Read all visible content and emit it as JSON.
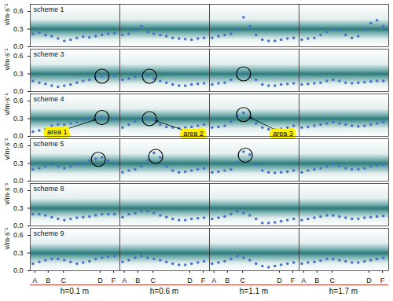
{
  "chart_data": {
    "type": "scatter",
    "y_label": "v/m·s⁻¹",
    "color": "#4a72c4",
    "marker": "circle",
    "x": [
      0.03,
      0.1,
      0.17,
      0.24,
      0.31,
      0.38,
      0.45,
      0.52,
      0.59,
      0.66,
      0.73,
      0.8,
      0.87,
      0.94
    ],
    "xlim": [
      0,
      1
    ],
    "xticks": [
      {
        "value": 0.05,
        "label": "A"
      },
      {
        "value": 0.2,
        "label": "B"
      },
      {
        "value": 0.37,
        "label": "C"
      },
      {
        "value": 0.78,
        "label": "D"
      },
      {
        "value": 0.93,
        "label": "F"
      }
    ],
    "ylim": [
      0,
      0.72
    ],
    "yticks": [
      {
        "value": 0,
        "label": "0.0"
      },
      {
        "value": 0.3,
        "label": "0.3"
      },
      {
        "value": 0.6,
        "label": "0.6"
      }
    ],
    "rows": [
      "scheme 1",
      "scheme 3",
      "scheme 4",
      "scheme 5",
      "scheme 8",
      "scheme 9"
    ],
    "columns": [
      "h=0.1 m",
      "h=0.6 m",
      "h=1.1 m",
      "h=1.7 m"
    ],
    "panels": [
      {
        "row": "scheme 1",
        "column": "h=0.1 m",
        "values": [
          0.22,
          0.24,
          0.2,
          0.18,
          0.14,
          0.1,
          0.12,
          0.15,
          0.17,
          0.16,
          0.18,
          0.2,
          0.22,
          0.23
        ]
      },
      {
        "row": "scheme 1",
        "column": "h=0.6 m",
        "values": [
          0.2,
          0.22,
          0.28,
          0.35,
          0.25,
          0.22,
          0.2,
          0.18,
          0.15,
          0.14,
          0.13,
          0.12,
          0.14,
          0.15
        ]
      },
      {
        "row": "scheme 1",
        "column": "h=1.1 m",
        "values": [
          0.15,
          0.18,
          0.2,
          0.22,
          0.3,
          0.5,
          0.35,
          0.2,
          0.12,
          0.1,
          0.1,
          0.12,
          0.14,
          0.15
        ]
      },
      {
        "row": "scheme 1",
        "column": "h=1.7 m",
        "values": [
          0.12,
          0.14,
          0.15,
          0.2,
          0.25,
          0.3,
          0.28,
          0.2,
          0.15,
          0.18,
          0.3,
          0.4,
          0.45,
          0.35
        ]
      },
      {
        "row": "scheme 3",
        "column": "h=0.1 m",
        "values": [
          0.18,
          0.15,
          0.13,
          0.1,
          0.08,
          0.1,
          0.12,
          0.15,
          0.18,
          0.2,
          0.25,
          0.26,
          0.27,
          0.26
        ]
      },
      {
        "row": "scheme 3",
        "column": "h=0.6 m",
        "values": [
          0.2,
          0.22,
          0.25,
          0.28,
          0.27,
          0.22,
          0.18,
          0.15,
          0.12,
          0.1,
          0.1,
          0.12,
          0.13,
          0.14
        ]
      },
      {
        "row": "scheme 3",
        "column": "h=1.1 m",
        "values": [
          0.12,
          0.14,
          0.15,
          0.2,
          0.3,
          0.32,
          0.28,
          0.2,
          0.12,
          0.1,
          0.1,
          0.12,
          0.13,
          0.14
        ]
      },
      {
        "row": "scheme 3",
        "column": "h=1.7 m",
        "values": [
          0.12,
          0.13,
          0.14,
          0.15,
          0.18,
          0.2,
          0.18,
          0.15,
          0.14,
          0.15,
          0.16,
          0.17,
          0.18,
          0.18
        ]
      },
      {
        "row": "scheme 4",
        "column": "h=0.1 m",
        "values": [
          0.08,
          0.1,
          0.12,
          0.18,
          0.2,
          0.2,
          0.22,
          0.24,
          0.28,
          0.3,
          0.32,
          0.33,
          0.32,
          0.3
        ]
      },
      {
        "row": "scheme 4",
        "column": "h=0.6 m",
        "values": [
          0.15,
          0.2,
          0.25,
          0.3,
          0.32,
          0.28,
          0.2,
          0.16,
          0.15,
          0.14,
          0.15,
          0.16,
          0.18,
          0.2
        ]
      },
      {
        "row": "scheme 4",
        "column": "h=1.1 m",
        "values": [
          0.15,
          0.16,
          0.18,
          0.25,
          0.35,
          0.4,
          0.32,
          0.22,
          0.15,
          0.12,
          0.12,
          0.13,
          0.15,
          0.18
        ]
      },
      {
        "row": "scheme 4",
        "column": "h=1.7 m",
        "values": [
          0.15,
          0.16,
          0.18,
          0.2,
          0.22,
          0.24,
          0.22,
          0.2,
          0.18,
          0.17,
          0.18,
          0.2,
          0.22,
          0.24
        ]
      },
      {
        "row": "scheme 5",
        "column": "h=0.1 m",
        "values": [
          0.2,
          0.22,
          0.25,
          0.28,
          0.25,
          0.22,
          0.25,
          0.28,
          0.3,
          0.35,
          0.38,
          0.4,
          0.35,
          0.3
        ]
      },
      {
        "row": "scheme 5",
        "column": "h=0.6 m",
        "values": [
          0.15,
          0.18,
          0.2,
          0.25,
          0.35,
          0.48,
          0.4,
          0.25,
          0.18,
          0.15,
          0.16,
          0.18,
          0.2,
          0.22
        ]
      },
      {
        "row": "scheme 5",
        "column": "h=1.1 m",
        "values": [
          0.15,
          0.16,
          0.18,
          0.2,
          0.32,
          0.5,
          0.45,
          0.28,
          0.18,
          0.15,
          0.14,
          0.15,
          0.16,
          0.18
        ]
      },
      {
        "row": "scheme 5",
        "column": "h=1.7 m",
        "values": [
          0.15,
          0.18,
          0.2,
          0.22,
          0.25,
          0.28,
          0.26,
          0.22,
          0.2,
          0.2,
          0.22,
          0.25,
          0.27,
          0.28
        ]
      },
      {
        "row": "scheme 8",
        "column": "h=0.1 m",
        "values": [
          0.2,
          0.2,
          0.18,
          0.15,
          0.12,
          0.1,
          0.12,
          0.14,
          0.15,
          0.16,
          0.18,
          0.2,
          0.2,
          0.2
        ]
      },
      {
        "row": "scheme 8",
        "column": "h=0.6 m",
        "values": [
          0.15,
          0.2,
          0.22,
          0.25,
          0.25,
          0.22,
          0.18,
          0.15,
          0.12,
          0.1,
          0.1,
          0.12,
          0.13,
          0.14
        ]
      },
      {
        "row": "scheme 8",
        "column": "h=1.1 m",
        "values": [
          0.12,
          0.14,
          0.16,
          0.2,
          0.25,
          0.22,
          0.18,
          0.12,
          0.05,
          0.05,
          0.06,
          0.08,
          0.1,
          0.12
        ]
      },
      {
        "row": "scheme 8",
        "column": "h=1.7 m",
        "values": [
          0.1,
          0.12,
          0.14,
          0.16,
          0.18,
          0.18,
          0.16,
          0.14,
          0.12,
          0.12,
          0.14,
          0.15,
          0.16,
          0.17
        ]
      },
      {
        "row": "scheme 9",
        "column": "h=0.1 m",
        "values": [
          0.12,
          0.15,
          0.18,
          0.2,
          0.2,
          0.18,
          0.15,
          0.12,
          0.14,
          0.16,
          0.2,
          0.22,
          0.24,
          0.25
        ]
      },
      {
        "row": "scheme 9",
        "column": "h=0.6 m",
        "values": [
          0.15,
          0.18,
          0.22,
          0.25,
          0.22,
          0.2,
          0.18,
          0.15,
          0.12,
          0.1,
          0.1,
          0.12,
          0.14,
          0.16
        ]
      },
      {
        "row": "scheme 9",
        "column": "h=1.1 m",
        "values": [
          0.12,
          0.14,
          0.16,
          0.2,
          0.25,
          0.22,
          0.18,
          0.12,
          0.08,
          0.06,
          0.08,
          0.1,
          0.12,
          0.14
        ]
      },
      {
        "row": "scheme 9",
        "column": "h=1.7 m",
        "values": [
          0.12,
          0.14,
          0.15,
          0.17,
          0.2,
          0.2,
          0.18,
          0.16,
          0.14,
          0.14,
          0.16,
          0.18,
          0.2,
          0.22
        ]
      }
    ],
    "annotations": {
      "ellipses": [
        {
          "area": "area 1",
          "row": "scheme 3",
          "column": "h=0.1 m",
          "x": 0.8,
          "y": 0.26
        },
        {
          "area": "area 2",
          "row": "scheme 3",
          "column": "h=0.6 m",
          "x": 0.33,
          "y": 0.26
        },
        {
          "area": "area 3",
          "row": "scheme 3",
          "column": "h=1.1 m",
          "x": 0.38,
          "y": 0.3
        },
        {
          "area": "area 1",
          "row": "scheme 4",
          "column": "h=0.1 m",
          "x": 0.8,
          "y": 0.32
        },
        {
          "area": "area 2",
          "row": "scheme 4",
          "column": "h=0.6 m",
          "x": 0.33,
          "y": 0.3
        },
        {
          "area": "area 3",
          "row": "scheme 4",
          "column": "h=1.1 m",
          "x": 0.38,
          "y": 0.37
        },
        {
          "area": "area 1",
          "row": "scheme 5",
          "column": "h=0.1 m",
          "x": 0.76,
          "y": 0.37
        },
        {
          "area": "area 2",
          "row": "scheme 5",
          "column": "h=0.6 m",
          "x": 0.4,
          "y": 0.42
        },
        {
          "area": "area 3",
          "row": "scheme 5",
          "column": "h=1.1 m",
          "x": 0.4,
          "y": 0.44
        }
      ],
      "labels": [
        {
          "text": "area 1",
          "row": "scheme 4",
          "column": "h=0.1 m",
          "x": 0.3,
          "y": 0.07
        },
        {
          "text": "area 2",
          "row": "scheme 4",
          "column": "h=0.6 m",
          "x": 0.82,
          "y": 0.05
        },
        {
          "text": "area 3",
          "row": "scheme 4",
          "column": "h=1.1 m",
          "x": 0.82,
          "y": 0.05
        }
      ]
    }
  }
}
